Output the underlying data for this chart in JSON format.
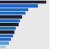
{
  "values": [
    8.8,
    7.2,
    5.4,
    4.9,
    4.2,
    3.8,
    3.5,
    3.1,
    2.8,
    2.5,
    2.1,
    1.7,
    1.1
  ],
  "bar_colors": [
    "#1a1a2e",
    "#1565c0",
    "#1565c0",
    "#1565c0",
    "#1a1a2e",
    "#1565c0",
    "#1a1a2e",
    "#1565c0",
    "#1a1a2e",
    "#1565c0",
    "#1565c0",
    "#5b9bd5",
    "#a8c8e8"
  ],
  "background_color": "#ffffff",
  "plot_bg": "#e8e8e8",
  "bar_height": 0.82,
  "xlim": [
    0,
    9.5
  ],
  "n_bars": 13
}
